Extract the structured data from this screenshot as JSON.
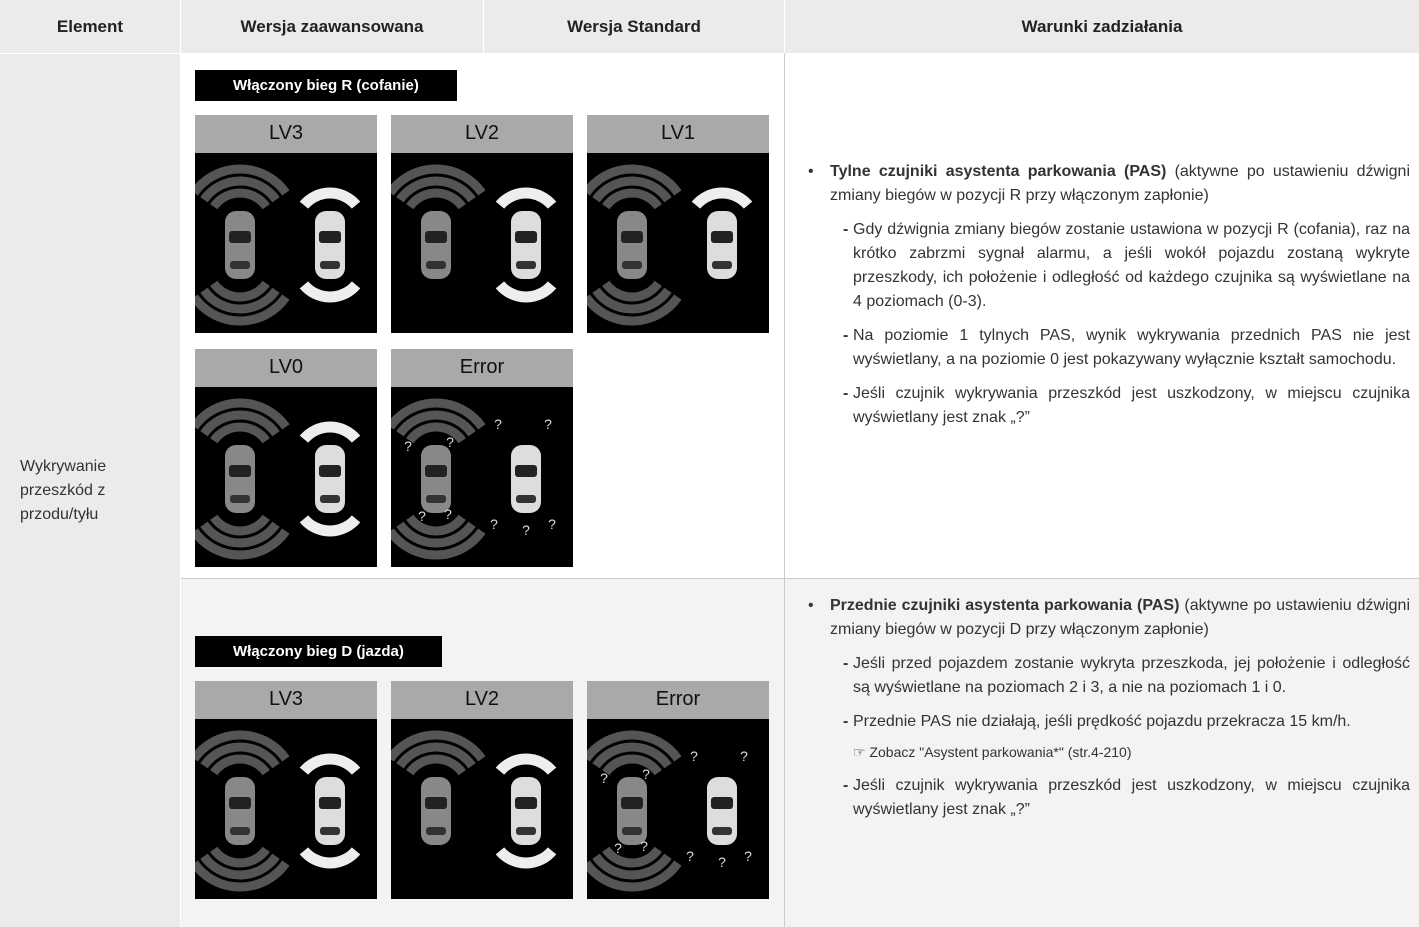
{
  "header": {
    "columns": [
      "Element",
      "Wersja zaawansowana",
      "Wersja Standard",
      "Warunki zadziałania"
    ]
  },
  "element": "Wykrywanie przeszkód z przodu/tyłu",
  "sections": [
    {
      "gear": "Włączony bieg R (cofanie)",
      "panels": [
        {
          "label": "LV3"
        },
        {
          "label": "LV2"
        },
        {
          "label": "LV1"
        },
        {
          "label": "LV0"
        },
        {
          "label": "Error",
          "symbol": "?"
        }
      ],
      "conditions": {
        "title": "Tylne czujniki asystenta parkowania (PAS)",
        "text": " (aktywne po ustawieniu dźwigni zmiany biegów w pozycji R przy włączonym zapłonie)",
        "items": [
          {
            "text": "Gdy dźwignia zmiany biegów zostanie ustawiona w pozycji R (cofania), raz na krótko zabrzmi sygnał alarmu, a jeśli wokół pojazdu zostaną wykryte przeszkody, ich położenie i odległość od każdego czujnika są wyświetlane na 4 poziomach (0-3)."
          },
          {
            "text": "Na poziomie 1 tylnych PAS, wynik wykrywania przednich PAS nie jest wyświetlany, a na poziomie 0 jest pokazywany wyłącznie kształt samochodu."
          },
          {
            "text": "Jeśli czujnik wykrywania przeszkód jest uszkodzony, w miejscu czujnika wyświetlany jest znak „?”"
          }
        ]
      }
    },
    {
      "gear": "Włączony bieg D (jazda)",
      "panels": [
        {
          "label": "LV3"
        },
        {
          "label": "LV2"
        },
        {
          "label": "Error",
          "symbol": "?"
        }
      ],
      "conditions": {
        "title": "Przednie czujniki asystenta parkowania (PAS)",
        "text": " (aktywne po ustawieniu dźwigni zmiany biegów w pozycji D przy włączonym zapłonie)",
        "items": [
          {
            "text": "Jeśli przed pojazdem zostanie wykryta przeszkoda, jej położenie i odległość są wyświetlane na poziomach 2 i 3, a nie na poziomach 1 i 0."
          },
          {
            "text": "Przednie PAS nie działają, jeśli prędkość pojazdu przekracza 15 km/h.",
            "note": "☞ Zobacz \"Asystent parkowania*\" (str.4-210)"
          },
          {
            "text": "Jeśli czujnik wykrywania przeszkód jest uszkodzony, w miejscu czujnika wyświetlany jest znak „?”"
          }
        ]
      }
    }
  ]
}
